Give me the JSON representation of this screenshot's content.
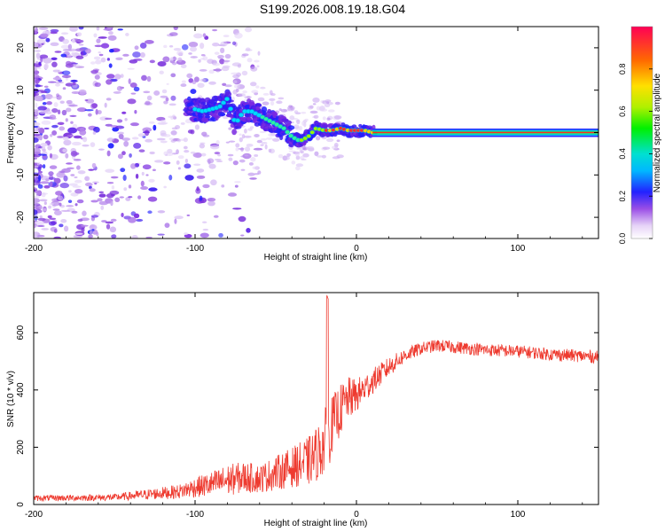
{
  "title": "S199.2026.008.19.18.G04",
  "chart_data": [
    {
      "type": "heatmap",
      "xlabel": "Height of straight line (km)",
      "ylabel": "Frequency (Hz)",
      "xlim": [
        -200,
        150
      ],
      "ylim": [
        -25,
        25
      ],
      "xticks": [
        -200,
        -100,
        0,
        100
      ],
      "yticks": [
        -20,
        -10,
        0,
        10,
        20
      ],
      "colorbar": {
        "label": "Normalized spectral amplitude",
        "range": [
          0,
          1
        ],
        "ticks": [
          "0.0",
          "0.2",
          "0.4",
          "0.6",
          "0.8"
        ]
      },
      "ridge": {
        "x": [
          -105,
          -95,
          -85,
          -80,
          -75,
          -70,
          -65,
          -60,
          -55,
          -50,
          -45,
          -40,
          -35,
          -30,
          -25,
          -20,
          -15,
          -10,
          -5,
          0,
          5,
          10,
          20,
          150
        ],
        "y": [
          6,
          5,
          6,
          8,
          2,
          5,
          5,
          4,
          3,
          2,
          1,
          -1,
          -2,
          -1,
          1,
          0.5,
          0.5,
          1,
          0.5,
          0.5,
          0.5,
          0,
          0,
          0
        ]
      },
      "grid": false,
      "legend": "none"
    },
    {
      "type": "line",
      "xlabel": "Height of straight line (km)",
      "ylabel": "SNR (10 * v/v)",
      "xlim": [
        -200,
        150
      ],
      "ylim": [
        0,
        740
      ],
      "xticks": [
        -200,
        -100,
        0,
        100
      ],
      "yticks": [
        0,
        200,
        400,
        600
      ],
      "color": "#ee3b30",
      "envelope": {
        "x": [
          -200,
          -150,
          -130,
          -110,
          -100,
          -90,
          -80,
          -70,
          -60,
          -50,
          -40,
          -30,
          -25,
          -20,
          -18,
          -16,
          -15,
          -10,
          -5,
          0,
          10,
          20,
          30,
          40,
          50,
          60,
          80,
          100,
          120,
          150
        ],
        "mean": [
          22,
          25,
          35,
          45,
          60,
          70,
          85,
          95,
          90,
          110,
          130,
          150,
          175,
          210,
          250,
          260,
          280,
          330,
          370,
          380,
          430,
          480,
          520,
          545,
          555,
          550,
          540,
          535,
          525,
          515
        ],
        "amplitude": [
          10,
          12,
          18,
          25,
          35,
          45,
          55,
          55,
          50,
          60,
          70,
          85,
          95,
          110,
          120,
          110,
          100,
          90,
          75,
          60,
          45,
          35,
          25,
          22,
          22,
          22,
          22,
          22,
          22,
          22
        ]
      },
      "spike": {
        "x": -18,
        "y": 735
      },
      "grid": false,
      "legend": "none"
    }
  ]
}
